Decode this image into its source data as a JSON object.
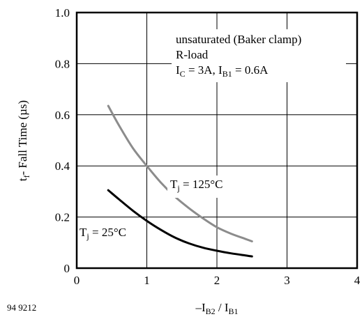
{
  "chart_data": {
    "type": "line",
    "title": "",
    "ylabel_main": "t",
    "ylabel_sub": "f",
    "ylabel_rest": "- Fall Time  (µs)",
    "xlabel_pre": "–I",
    "xlabel_sub1": "B2",
    "xlabel_mid": " / I",
    "xlabel_sub2": "B1",
    "figure_id": "94 9212",
    "xlim": [
      0,
      4
    ],
    "ylim": [
      0,
      1.0
    ],
    "x_ticks": [
      "0",
      "1",
      "2",
      "3",
      "4"
    ],
    "y_ticks": [
      "0",
      "0.2",
      "0.4",
      "0.6",
      "0.8",
      "1.0"
    ],
    "grid": true,
    "conditions": {
      "line1": "unsaturated (Baker clamp)",
      "line2": "R-load",
      "ic_pre": "I",
      "ic_sub": "C",
      "ic_val": " = 3A, I",
      "ib_sub": "B1",
      "ib_val": " = 0.6A"
    },
    "series": [
      {
        "label_pre": "T",
        "label_sub": "j",
        "label_val": " = 125°C",
        "color": "#8c8c8c",
        "x": [
          0.45,
          0.6,
          0.8,
          1.0,
          1.2,
          1.4,
          1.6,
          1.8,
          2.0,
          2.2,
          2.4,
          2.5
        ],
        "y": [
          0.635,
          0.56,
          0.47,
          0.4,
          0.335,
          0.28,
          0.235,
          0.195,
          0.16,
          0.135,
          0.115,
          0.105
        ]
      },
      {
        "label_pre": "T",
        "label_sub": "j",
        "label_val": " = 25°C",
        "color": "#000000",
        "x": [
          0.45,
          0.6,
          0.8,
          1.0,
          1.2,
          1.4,
          1.6,
          1.8,
          2.0,
          2.2,
          2.4,
          2.5
        ],
        "y": [
          0.305,
          0.27,
          0.225,
          0.185,
          0.15,
          0.12,
          0.097,
          0.08,
          0.068,
          0.058,
          0.05,
          0.046
        ]
      }
    ]
  }
}
